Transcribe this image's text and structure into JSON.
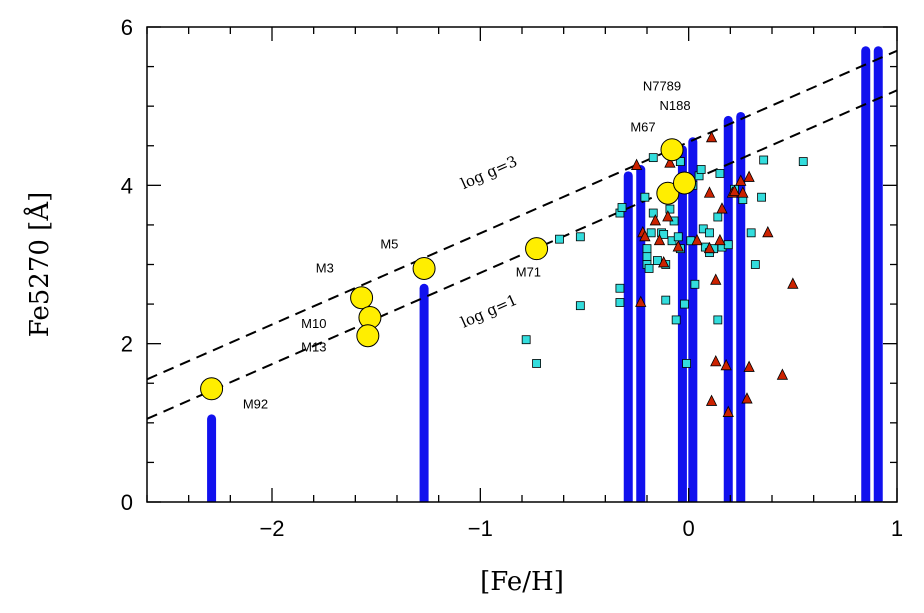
{
  "chart_data": {
    "type": "scatter",
    "xlabel": "[Fe/H]",
    "ylabel": "Fe5270 [Å]",
    "xlim": [
      -2.6,
      1.0
    ],
    "ylim": [
      0,
      6
    ],
    "xticks": [
      -2,
      -1,
      0,
      1
    ],
    "xtick_labels": [
      "−2",
      "−1",
      "0",
      "1"
    ],
    "yticks": [
      0,
      2,
      4,
      6
    ],
    "ytick_labels": [
      "0",
      "2",
      "4",
      "6"
    ],
    "grid": false,
    "lines": [
      {
        "label": "log g=3",
        "x": [
          -2.6,
          1.0
        ],
        "y": [
          1.55,
          5.7
        ],
        "style": "dashed"
      },
      {
        "label": "log g=1",
        "x": [
          -2.6,
          1.0
        ],
        "y": [
          1.05,
          5.2
        ],
        "style": "dashed"
      }
    ],
    "line_labels": [
      {
        "text": "log g=3",
        "x": -1.08,
        "y": 3.95
      },
      {
        "text": "log g=1",
        "x": -1.08,
        "y": 2.2
      }
    ],
    "clusters": {
      "name": "globular clusters",
      "color": "#ffee00",
      "points": [
        {
          "label": "M92",
          "x": -2.29,
          "y": 1.43
        },
        {
          "label": "M3",
          "x": -1.57,
          "y": 2.58
        },
        {
          "label": "M10",
          "x": -1.53,
          "y": 2.33
        },
        {
          "label": "M13",
          "x": -1.54,
          "y": 2.1
        },
        {
          "label": "M5",
          "x": -1.27,
          "y": 2.95
        },
        {
          "label": "M71",
          "x": -0.73,
          "y": 3.2
        },
        {
          "label": "M67",
          "x": -0.1,
          "y": 3.9
        },
        {
          "label": "N188",
          "x": -0.02,
          "y": 4.03
        },
        {
          "label": "N7789",
          "x": -0.08,
          "y": 4.45
        }
      ],
      "point_labels": [
        {
          "text": "M92",
          "x": -2.14,
          "y": 1.18
        },
        {
          "text": "M3",
          "x": -1.79,
          "y": 2.9
        },
        {
          "text": "M10",
          "x": -1.86,
          "y": 2.2
        },
        {
          "text": "M13",
          "x": -1.86,
          "y": 1.9
        },
        {
          "text": "M5",
          "x": -1.48,
          "y": 3.2
        },
        {
          "text": "M71",
          "x": -0.83,
          "y": 2.85
        },
        {
          "text": "M67",
          "x": -0.28,
          "y": 4.68
        },
        {
          "text": "N188",
          "x": -0.14,
          "y": 4.95
        },
        {
          "text": "N7789",
          "x": -0.22,
          "y": 5.2
        }
      ]
    },
    "squares": {
      "color": "#33dddd",
      "points": [
        [
          -0.78,
          2.05
        ],
        [
          -0.73,
          1.75
        ],
        [
          -0.62,
          3.32
        ],
        [
          -0.52,
          3.35
        ],
        [
          -0.52,
          2.48
        ],
        [
          -0.33,
          3.65
        ],
        [
          -0.33,
          2.52
        ],
        [
          -0.33,
          2.7
        ],
        [
          -0.32,
          3.72
        ],
        [
          -0.21,
          3.85
        ],
        [
          -0.2,
          3.1
        ],
        [
          -0.2,
          3.2
        ],
        [
          -0.2,
          3.0
        ],
        [
          -0.19,
          2.95
        ],
        [
          -0.18,
          3.4
        ],
        [
          -0.17,
          3.65
        ],
        [
          -0.17,
          4.35
        ],
        [
          -0.15,
          3.05
        ],
        [
          -0.13,
          3.4
        ],
        [
          -0.12,
          3.38
        ],
        [
          -0.11,
          3.0
        ],
        [
          -0.11,
          2.55
        ],
        [
          -0.09,
          3.7
        ],
        [
          -0.08,
          3.3
        ],
        [
          -0.07,
          3.55
        ],
        [
          -0.06,
          2.3
        ],
        [
          -0.05,
          3.35
        ],
        [
          -0.04,
          3.2
        ],
        [
          -0.04,
          4.3
        ],
        [
          -0.02,
          2.5
        ],
        [
          -0.01,
          1.75
        ],
        [
          0.01,
          3.3
        ],
        [
          0.02,
          4.0
        ],
        [
          0.03,
          2.75
        ],
        [
          0.05,
          4.12
        ],
        [
          0.06,
          4.2
        ],
        [
          0.07,
          3.45
        ],
        [
          0.08,
          3.22
        ],
        [
          0.1,
          3.15
        ],
        [
          0.1,
          3.4
        ],
        [
          0.12,
          3.2
        ],
        [
          0.14,
          2.3
        ],
        [
          0.14,
          3.6
        ],
        [
          0.15,
          4.15
        ],
        [
          0.16,
          3.22
        ],
        [
          0.19,
          3.25
        ],
        [
          0.22,
          3.95
        ],
        [
          0.26,
          3.82
        ],
        [
          0.3,
          3.4
        ],
        [
          0.32,
          3.0
        ],
        [
          0.35,
          3.85
        ],
        [
          0.36,
          4.32
        ],
        [
          0.55,
          4.3
        ]
      ]
    },
    "triangles": {
      "color": "#cc2200",
      "points": [
        [
          -0.25,
          4.25
        ],
        [
          -0.23,
          2.52
        ],
        [
          -0.22,
          3.4
        ],
        [
          -0.21,
          3.35
        ],
        [
          -0.16,
          3.55
        ],
        [
          -0.14,
          3.3
        ],
        [
          -0.12,
          3.02
        ],
        [
          -0.1,
          3.6
        ],
        [
          -0.09,
          4.28
        ],
        [
          -0.05,
          3.22
        ],
        [
          0.04,
          3.3
        ],
        [
          0.1,
          3.9
        ],
        [
          0.1,
          3.2
        ],
        [
          0.11,
          1.27
        ],
        [
          0.11,
          4.6
        ],
        [
          0.13,
          1.77
        ],
        [
          0.13,
          2.8
        ],
        [
          0.15,
          3.3
        ],
        [
          0.16,
          3.7
        ],
        [
          0.18,
          1.72
        ],
        [
          0.19,
          1.13
        ],
        [
          0.21,
          3.9
        ],
        [
          0.22,
          3.92
        ],
        [
          0.25,
          4.05
        ],
        [
          0.26,
          3.9
        ],
        [
          0.28,
          1.3
        ],
        [
          0.29,
          4.1
        ],
        [
          0.29,
          1.7
        ],
        [
          0.38,
          3.4
        ],
        [
          0.45,
          1.6
        ],
        [
          0.5,
          2.75
        ]
      ]
    },
    "vertical_bars": {
      "color": "#1111ee",
      "bars": [
        {
          "x": -2.29,
          "y0": 0,
          "y1": 1.05
        },
        {
          "x": -1.27,
          "y0": 0,
          "y1": 2.7
        },
        {
          "x": -0.29,
          "y0": 0,
          "y1": 4.12
        },
        {
          "x": -0.23,
          "y0": 0,
          "y1": 4.2
        },
        {
          "x": -0.03,
          "y0": 0,
          "y1": 4.45
        },
        {
          "x": 0.02,
          "y0": 0,
          "y1": 4.55
        },
        {
          "x": 0.19,
          "y0": 0,
          "y1": 4.82
        },
        {
          "x": 0.25,
          "y0": 0,
          "y1": 4.87
        },
        {
          "x": 0.85,
          "y0": 0,
          "y1": 5.7
        },
        {
          "x": 0.91,
          "y0": 0,
          "y1": 5.7
        }
      ]
    }
  }
}
